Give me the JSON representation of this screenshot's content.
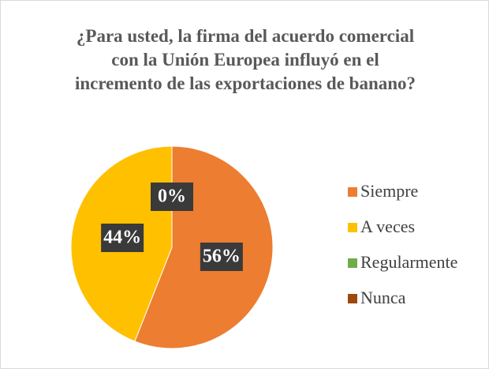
{
  "chart_data": {
    "type": "pie",
    "title": "¿Para usted, la firma del acuerdo comercial con la Unión Europea influyó en el incremento de las exportaciones de banano?",
    "categories": [
      "Siempre",
      "A veces",
      "Regularmente",
      "Nunca"
    ],
    "values": [
      56,
      44,
      0,
      0
    ],
    "value_labels": [
      "56%",
      "44%",
      "0%",
      "0%"
    ],
    "colors": [
      "#ED7D31",
      "#FFC000",
      "#70AD47",
      "#9E480E"
    ],
    "legend": "right"
  }
}
